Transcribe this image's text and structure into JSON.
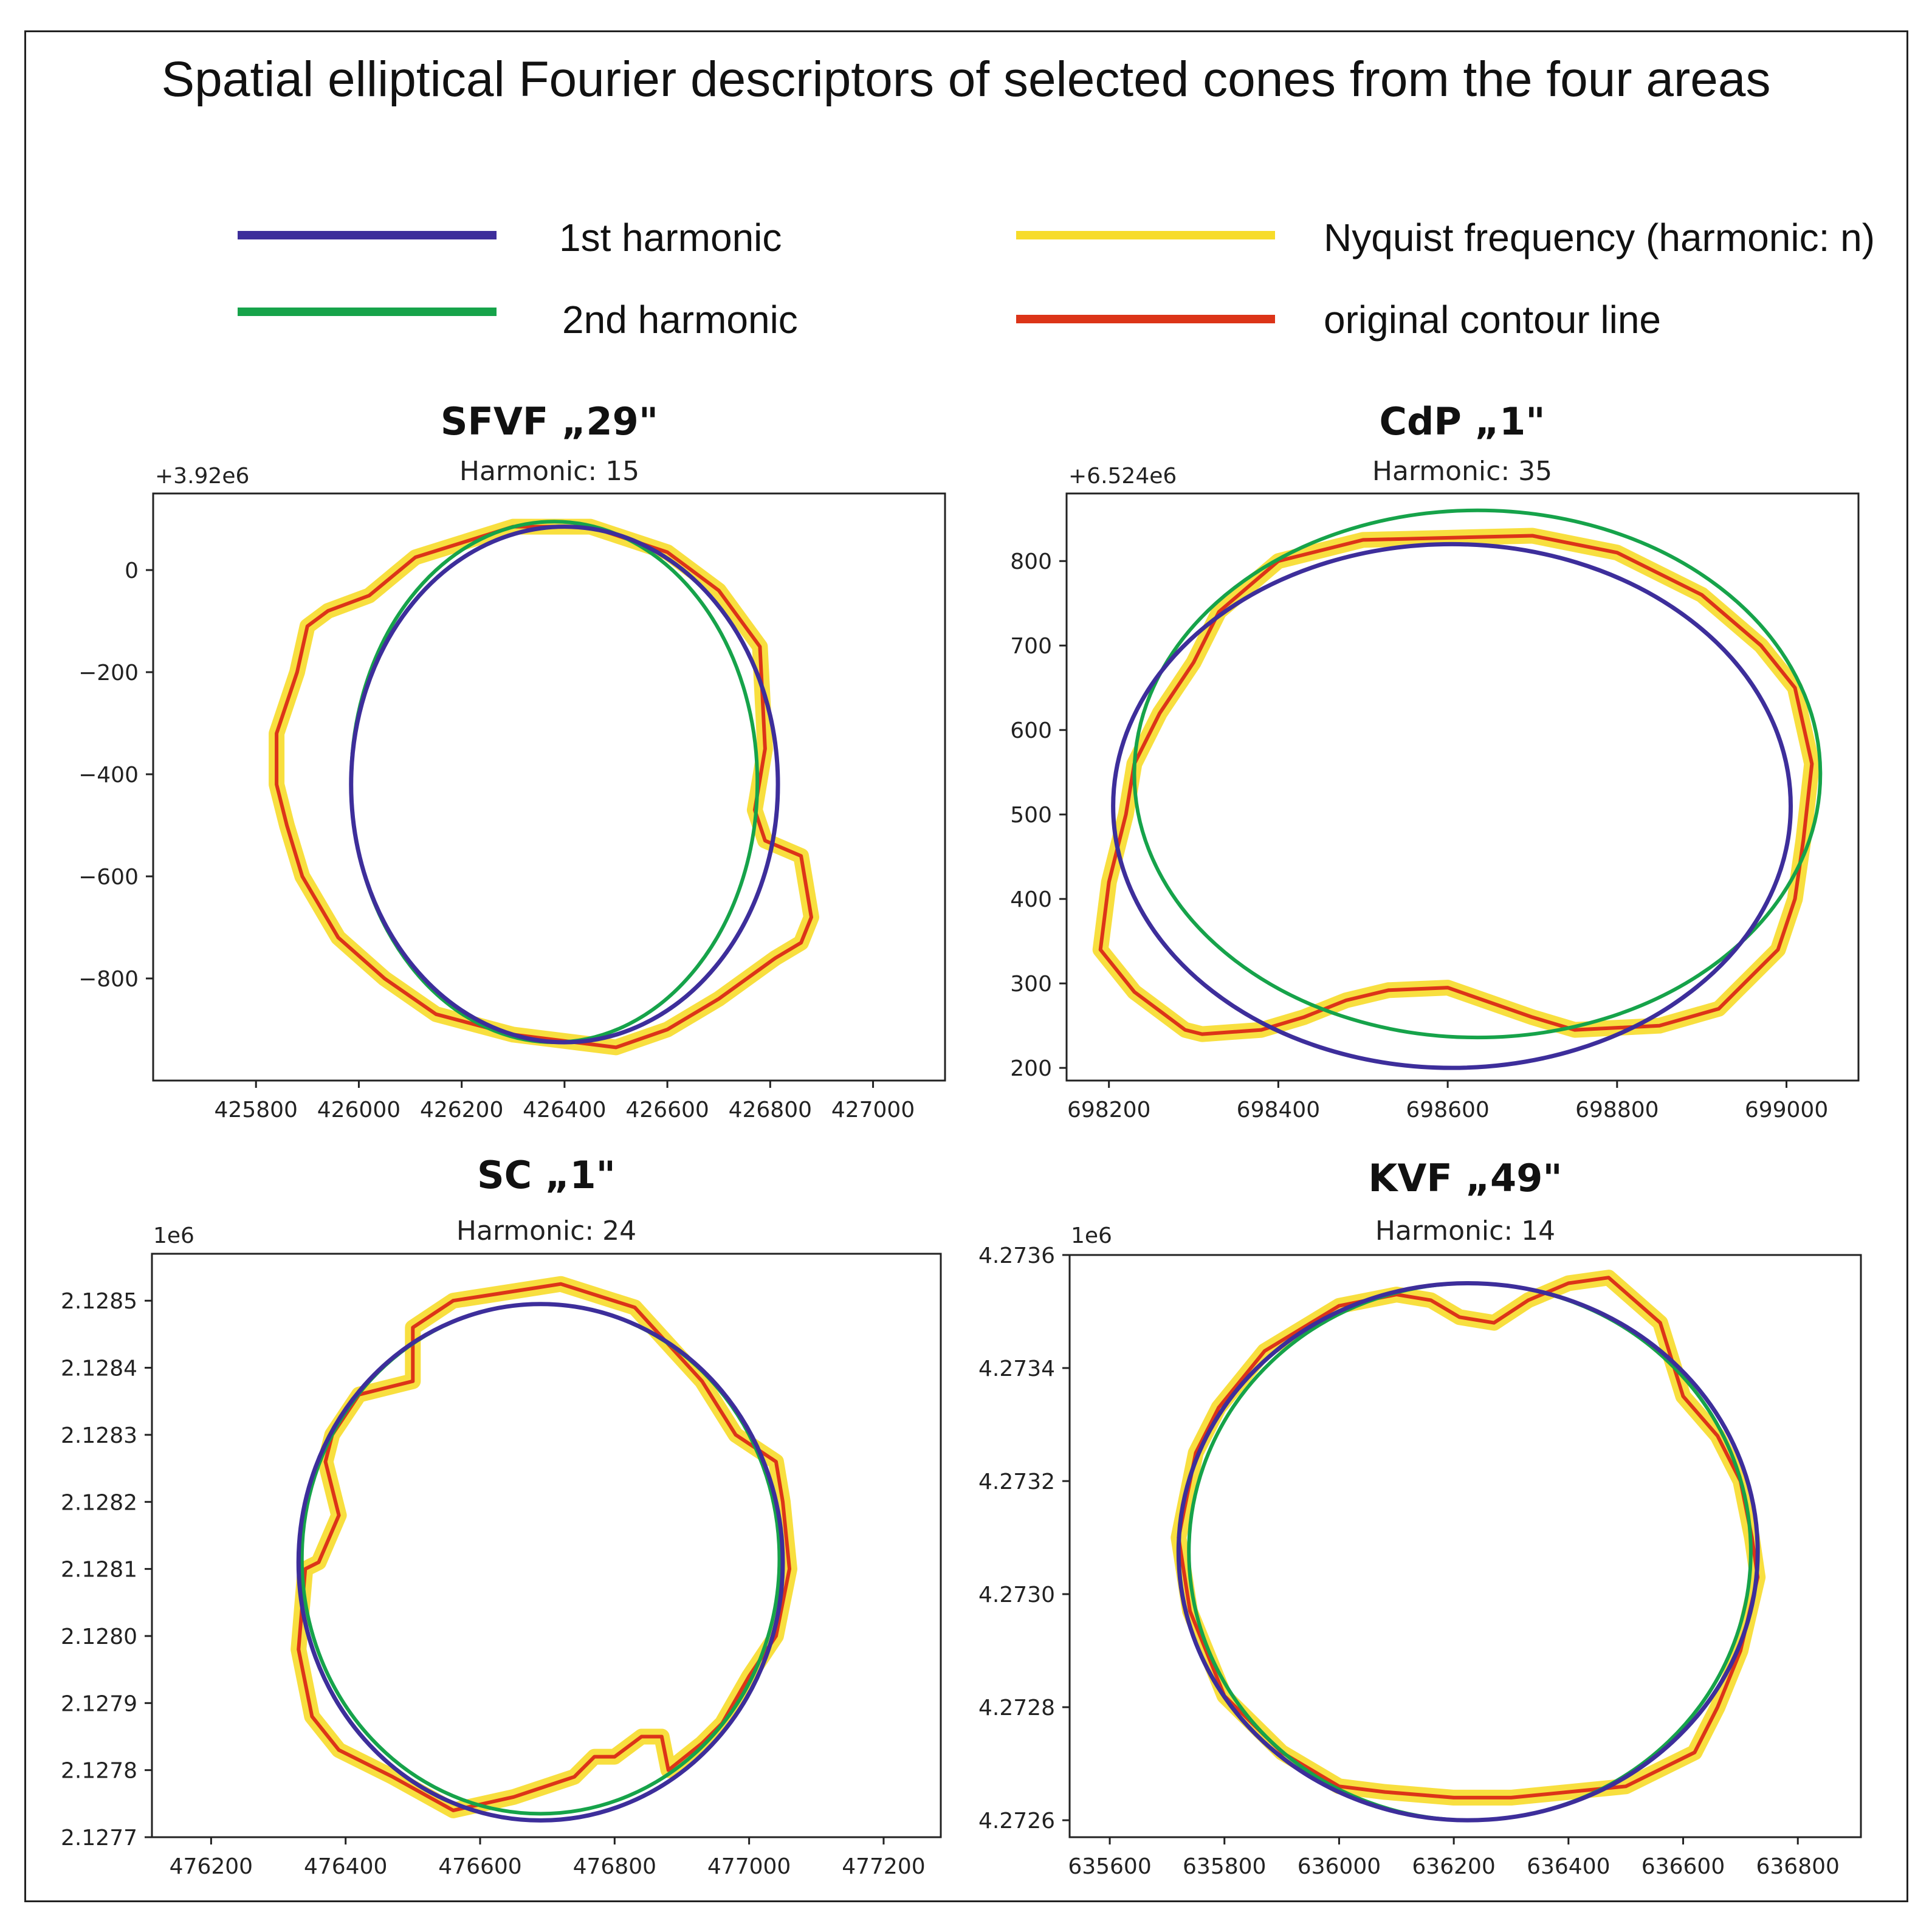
{
  "title": "Spatial elliptical Fourier descriptors of selected cones from the four areas",
  "legend": [
    {
      "label": "1st harmonic",
      "color": "#3d2e9b"
    },
    {
      "label": "2nd harmonic",
      "color": "#16a34a"
    },
    {
      "label": "Nyquist frequency (harmonic: n)",
      "color": "#f7dc2a"
    },
    {
      "label": "original contour line",
      "color": "#dc3418"
    }
  ],
  "chart_data": [
    {
      "type": "line",
      "title": "SFVF „29\"",
      "subtitle": "Harmonic: 15",
      "offset_label": "+3.92e6",
      "xlim": [
        425600,
        427140
      ],
      "ylim": [
        -1000,
        150
      ],
      "xticks": [
        {
          "v": 425800,
          "label": "425800"
        },
        {
          "v": 426000,
          "label": "426000"
        },
        {
          "v": 426200,
          "label": "426200"
        },
        {
          "v": 426400,
          "label": "426400"
        },
        {
          "v": 426600,
          "label": "426600"
        },
        {
          "v": 426800,
          "label": "426800"
        },
        {
          "v": 427000,
          "label": "427000"
        }
      ],
      "yticks": [
        {
          "v": 0,
          "label": "0"
        },
        {
          "v": -200,
          "label": "−200"
        },
        {
          "v": -400,
          "label": "−400"
        },
        {
          "v": -600,
          "label": "−600"
        },
        {
          "v": -800,
          "label": "−800"
        }
      ],
      "harmonic1": {
        "cx": 426400,
        "cy": -420,
        "rx": 415,
        "ry": 505
      },
      "harmonic2": {
        "cx": 426380,
        "cy": -415,
        "rx": 395,
        "ry": 510
      },
      "contour": [
        [
          426020,
          -50
        ],
        [
          426110,
          25
        ],
        [
          426300,
          85
        ],
        [
          426450,
          85
        ],
        [
          426600,
          35
        ],
        [
          426700,
          -40
        ],
        [
          426780,
          -150
        ],
        [
          426790,
          -350
        ],
        [
          426770,
          -470
        ],
        [
          426790,
          -530
        ],
        [
          426860,
          -560
        ],
        [
          426880,
          -680
        ],
        [
          426860,
          -730
        ],
        [
          426810,
          -760
        ],
        [
          426700,
          -840
        ],
        [
          426600,
          -900
        ],
        [
          426500,
          -935
        ],
        [
          426300,
          -910
        ],
        [
          426150,
          -870
        ],
        [
          426050,
          -800
        ],
        [
          425960,
          -720
        ],
        [
          425890,
          -600
        ],
        [
          425860,
          -500
        ],
        [
          425840,
          -420
        ],
        [
          425840,
          -320
        ],
        [
          425880,
          -200
        ],
        [
          425900,
          -110
        ],
        [
          425940,
          -80
        ]
      ]
    },
    {
      "type": "line",
      "title": "CdP „1\"",
      "subtitle": "Harmonic: 35",
      "offset_label": "+6.524e6",
      "xlim": [
        698150,
        699085
      ],
      "ylim": [
        185,
        880
      ],
      "xticks": [
        {
          "v": 698200,
          "label": "698200"
        },
        {
          "v": 698400,
          "label": "698400"
        },
        {
          "v": 698600,
          "label": "698600"
        },
        {
          "v": 698800,
          "label": "698800"
        },
        {
          "v": 699000,
          "label": "699000"
        }
      ],
      "yticks": [
        {
          "v": 800,
          "label": "800"
        },
        {
          "v": 700,
          "label": "700"
        },
        {
          "v": 600,
          "label": "600"
        },
        {
          "v": 500,
          "label": "500"
        },
        {
          "v": 400,
          "label": "400"
        },
        {
          "v": 300,
          "label": "300"
        },
        {
          "v": 200,
          "label": "200"
        }
      ],
      "harmonic1": {
        "cx": 698605,
        "cy": 510,
        "rx": 400,
        "ry": 310
      },
      "harmonic2": {
        "cx": 698635,
        "cy": 548,
        "rx": 405,
        "ry": 312
      },
      "contour": [
        [
          698230,
          560
        ],
        [
          698260,
          620
        ],
        [
          698300,
          680
        ],
        [
          698330,
          740
        ],
        [
          698400,
          800
        ],
        [
          698500,
          825
        ],
        [
          698700,
          830
        ],
        [
          698800,
          810
        ],
        [
          698900,
          760
        ],
        [
          698970,
          700
        ],
        [
          699010,
          650
        ],
        [
          699030,
          560
        ],
        [
          699020,
          470
        ],
        [
          699010,
          400
        ],
        [
          698990,
          340
        ],
        [
          698960,
          310
        ],
        [
          698940,
          290
        ],
        [
          698920,
          270
        ],
        [
          698850,
          250
        ],
        [
          698750,
          245
        ],
        [
          698700,
          260
        ],
        [
          698600,
          295
        ],
        [
          698530,
          292
        ],
        [
          698480,
          280
        ],
        [
          698430,
          260
        ],
        [
          698380,
          245
        ],
        [
          698310,
          240
        ],
        [
          698290,
          245
        ],
        [
          698230,
          290
        ],
        [
          698190,
          340
        ],
        [
          698200,
          420
        ],
        [
          698220,
          500
        ]
      ]
    },
    {
      "type": "line",
      "title": "SC „1\"",
      "subtitle": "Harmonic: 24",
      "offset_label": "1e6",
      "xlim": [
        476112,
        477285
      ],
      "ylim": [
        2.1277,
        2.12857
      ],
      "xticks": [
        {
          "v": 476200,
          "label": "476200"
        },
        {
          "v": 476400,
          "label": "476400"
        },
        {
          "v": 476600,
          "label": "476600"
        },
        {
          "v": 476800,
          "label": "476800"
        },
        {
          "v": 477000,
          "label": "477000"
        },
        {
          "v": 477200,
          "label": "477200"
        }
      ],
      "yticks": [
        {
          "v": 2.1285,
          "label": "2.1285"
        },
        {
          "v": 2.1284,
          "label": "2.1284"
        },
        {
          "v": 2.1283,
          "label": "2.1283"
        },
        {
          "v": 2.1282,
          "label": "2.1282"
        },
        {
          "v": 2.1281,
          "label": "2.1281"
        },
        {
          "v": 2.128,
          "label": "2.1280"
        },
        {
          "v": 2.1279,
          "label": "2.1279"
        },
        {
          "v": 2.1278,
          "label": "2.1278"
        },
        {
          "v": 2.1277,
          "label": "2.1277"
        }
      ],
      "harmonic1": {
        "cx": 476690,
        "cy": 2.12811,
        "rx": 360,
        "ry": 0.000385
      },
      "harmonic2": {
        "cx": 476690,
        "cy": 2.128115,
        "rx": 355,
        "ry": 0.00038
      },
      "contour": [
        [
          476500,
          2.12846
        ],
        [
          476560,
          2.1285
        ],
        [
          476720,
          2.128525
        ],
        [
          476830,
          2.12849
        ],
        [
          476930,
          2.12838
        ],
        [
          476980,
          2.1283
        ],
        [
          477040,
          2.12826
        ],
        [
          477050,
          2.1282
        ],
        [
          477060,
          2.1281
        ],
        [
          477040,
          2.128
        ],
        [
          477000,
          2.12794
        ],
        [
          476960,
          2.12787
        ],
        [
          476930,
          2.12784
        ],
        [
          476880,
          2.1278
        ],
        [
          476870,
          2.12785
        ],
        [
          476840,
          2.12785
        ],
        [
          476800,
          2.12782
        ],
        [
          476770,
          2.12782
        ],
        [
          476740,
          2.12779
        ],
        [
          476650,
          2.12776
        ],
        [
          476560,
          2.12774
        ],
        [
          476470,
          2.12779
        ],
        [
          476390,
          2.12783
        ],
        [
          476350,
          2.12788
        ],
        [
          476330,
          2.12798
        ],
        [
          476340,
          2.1281
        ],
        [
          476360,
          2.12811
        ],
        [
          476390,
          2.12818
        ],
        [
          476370,
          2.12826
        ],
        [
          476380,
          2.1283
        ],
        [
          476420,
          2.12836
        ],
        [
          476500,
          2.12838
        ]
      ]
    },
    {
      "type": "line",
      "title": "KVF „49\"",
      "subtitle": "Harmonic: 14",
      "offset_label": "1e6",
      "xlim": [
        635530,
        636910
      ],
      "ylim": [
        4.27257,
        4.2736
      ],
      "xticks": [
        {
          "v": 635600,
          "label": "635600"
        },
        {
          "v": 635800,
          "label": "635800"
        },
        {
          "v": 636000,
          "label": "636000"
        },
        {
          "v": 636200,
          "label": "636200"
        },
        {
          "v": 636400,
          "label": "636400"
        },
        {
          "v": 636600,
          "label": "636600"
        },
        {
          "v": 636800,
          "label": "636800"
        }
      ],
      "yticks": [
        {
          "v": 4.2736,
          "label": "4.2736"
        },
        {
          "v": 4.2734,
          "label": "4.2734"
        },
        {
          "v": 4.2732,
          "label": "4.2732"
        },
        {
          "v": 4.273,
          "label": "4.2730"
        },
        {
          "v": 4.2728,
          "label": "4.2728"
        },
        {
          "v": 4.2726,
          "label": "4.2726"
        }
      ],
      "harmonic1": {
        "cx": 636225,
        "cy": 4.273075,
        "rx": 505,
        "ry": 0.000475
      },
      "harmonic2": {
        "cx": 636228,
        "cy": 4.273075,
        "rx": 490,
        "ry": 0.000475
      },
      "contour": [
        [
          635870,
          4.27343
        ],
        [
          636000,
          4.27351
        ],
        [
          636100,
          4.27353
        ],
        [
          636160,
          4.27352
        ],
        [
          636210,
          4.27349
        ],
        [
          636270,
          4.27348
        ],
        [
          636330,
          4.27352
        ],
        [
          636400,
          4.27355
        ],
        [
          636470,
          4.27356
        ],
        [
          636560,
          4.27348
        ],
        [
          636600,
          4.27335
        ],
        [
          636660,
          4.27328
        ],
        [
          636700,
          4.2732
        ],
        [
          636720,
          4.2731
        ],
        [
          636730,
          4.27303
        ],
        [
          636700,
          4.2729
        ],
        [
          636660,
          4.2728
        ],
        [
          636620,
          4.27272
        ],
        [
          636500,
          4.27266
        ],
        [
          636300,
          4.27264
        ],
        [
          636200,
          4.27264
        ],
        [
          636080,
          4.27265
        ],
        [
          636000,
          4.27266
        ],
        [
          635900,
          4.27272
        ],
        [
          635800,
          4.27282
        ],
        [
          635740,
          4.27297
        ],
        [
          635720,
          4.2731
        ],
        [
          635750,
          4.27325
        ],
        [
          635790,
          4.27333
        ]
      ]
    }
  ]
}
